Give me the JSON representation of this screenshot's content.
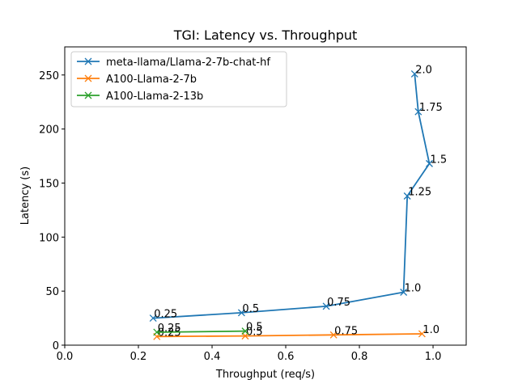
{
  "chart_data": {
    "type": "line",
    "title": "TGI: Latency vs. Throughput",
    "xlabel": "Throughput (req/s)",
    "ylabel": "Latency (s)",
    "xlim": [
      0.0,
      1.09
    ],
    "ylim": [
      0,
      276
    ],
    "xticks": [
      "0.0",
      "0.2",
      "0.4",
      "0.6",
      "0.8",
      "1.0"
    ],
    "yticks": [
      "0",
      "50",
      "100",
      "150",
      "200",
      "250"
    ],
    "grid": false,
    "legend_position": "top-left",
    "marker": "x",
    "series": [
      {
        "name": "meta-llama/Llama-2-7b-chat-hf",
        "color": "#1f77b4",
        "points": [
          {
            "x": 0.24,
            "y": 25,
            "label": "0.25"
          },
          {
            "x": 0.48,
            "y": 30,
            "label": "0.5"
          },
          {
            "x": 0.71,
            "y": 36,
            "label": "0.75"
          },
          {
            "x": 0.92,
            "y": 49,
            "label": "1.0"
          },
          {
            "x": 0.93,
            "y": 138,
            "label": "1.25"
          },
          {
            "x": 0.99,
            "y": 168,
            "label": "1.5"
          },
          {
            "x": 0.96,
            "y": 216,
            "label": "1.75"
          },
          {
            "x": 0.95,
            "y": 251,
            "label": "2.0"
          }
        ]
      },
      {
        "name": "A100-Llama-2-7b",
        "color": "#ff7f0e",
        "points": [
          {
            "x": 0.25,
            "y": 8,
            "label": "0.25"
          },
          {
            "x": 0.49,
            "y": 8.5,
            "label": "0.5"
          },
          {
            "x": 0.73,
            "y": 9.5,
            "label": "0.75"
          },
          {
            "x": 0.97,
            "y": 10.5,
            "label": "1.0"
          }
        ]
      },
      {
        "name": "A100-Llama-2-13b",
        "color": "#2ca02c",
        "points": [
          {
            "x": 0.25,
            "y": 12,
            "label": "0.25"
          },
          {
            "x": 0.49,
            "y": 13,
            "label": "0.5"
          }
        ]
      }
    ]
  }
}
